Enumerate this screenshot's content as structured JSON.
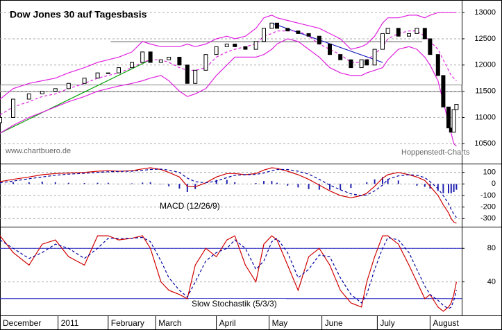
{
  "chart_data": [
    {
      "type": "candlestick",
      "title": "Dow Jones 30 auf Tagesbasis",
      "source": "www.chartbuero.de",
      "credit": "Hoppenstedt-Charts",
      "x": [
        0,
        5,
        11,
        16,
        21,
        26,
        32,
        37,
        41,
        45,
        50,
        54,
        57,
        61,
        64,
        68,
        71,
        74,
        78,
        82,
        86,
        89,
        93,
        97,
        100,
        103,
        105,
        109,
        113,
        117,
        121,
        125,
        129,
        133,
        137,
        139,
        142,
        145,
        147,
        151,
        155,
        158,
        161,
        163,
        166,
        168,
        170,
        171,
        172,
        173
      ],
      "xlim": [
        0,
        175
      ],
      "open": [
        10900,
        11000,
        11350,
        11450,
        11500,
        11550,
        11650,
        11750,
        11850,
        11850,
        11950,
        12050,
        12250,
        12050,
        12100,
        12150,
        12000,
        11650,
        11900,
        12200,
        12350,
        12400,
        12350,
        12300,
        12450,
        12700,
        12800,
        12700,
        12650,
        12600,
        12550,
        12400,
        12200,
        12100,
        11950,
        12100,
        12000,
        12300,
        12600,
        12700,
        12550,
        12600,
        12700,
        12500,
        12200,
        11800,
        11200,
        10800,
        10720,
        11150
      ],
      "close": [
        11000,
        11350,
        11450,
        11500,
        11550,
        11650,
        11750,
        11850,
        11850,
        11950,
        12050,
        12250,
        12050,
        12100,
        12150,
        12000,
        11650,
        11900,
        12200,
        12350,
        12400,
        12350,
        12300,
        12450,
        12700,
        12800,
        12700,
        12650,
        12600,
        12550,
        12400,
        12200,
        12100,
        11950,
        12100,
        12000,
        12300,
        12600,
        12700,
        12550,
        12600,
        12700,
        12500,
        12200,
        11800,
        11200,
        10800,
        10720,
        11150,
        11250
      ],
      "up_color": "#ffffff",
      "down_color": "#000000",
      "series": [
        {
          "color": "#e020e0",
          "style": "solid",
          "values": [
            11350,
            11550,
            11650,
            11700,
            11750,
            11850,
            11950,
            12050,
            12100,
            12150,
            12250,
            12450,
            12400,
            12350,
            12350,
            12350,
            12400,
            12350,
            12400,
            12500,
            12550,
            12500,
            12550,
            12700,
            12900,
            12950,
            12900,
            12850,
            12800,
            12750,
            12700,
            12600,
            12500,
            12300,
            12350,
            12400,
            12550,
            12800,
            12900,
            12900,
            12950,
            12950,
            12900,
            12950,
            13000,
            13000,
            13000,
            13000,
            13000,
            13000
          ]
        },
        {
          "color": "#e020e0",
          "style": "dashed",
          "values": [
            11050,
            11200,
            11300,
            11400,
            11450,
            11550,
            11650,
            11750,
            11800,
            11850,
            11950,
            12050,
            12100,
            12100,
            12050,
            11950,
            11900,
            11900,
            11950,
            12150,
            12250,
            12300,
            12350,
            12400,
            12550,
            12600,
            12650,
            12650,
            12650,
            12550,
            12400,
            12300,
            12200,
            12050,
            12050,
            12100,
            12200,
            12350,
            12500,
            12600,
            12650,
            12650,
            12550,
            12450,
            12300,
            12100,
            11900,
            11800,
            11750,
            11700
          ]
        },
        {
          "color": "#e020e0",
          "style": "solid",
          "values": [
            10700,
            10850,
            11000,
            11100,
            11200,
            11300,
            11400,
            11500,
            11550,
            11600,
            11650,
            11700,
            11750,
            11800,
            11700,
            11500,
            11400,
            11450,
            11550,
            11800,
            12000,
            12150,
            12150,
            12150,
            12200,
            12300,
            12400,
            12500,
            12450,
            12300,
            12150,
            11950,
            11850,
            11800,
            11800,
            11850,
            11900,
            11950,
            12100,
            12300,
            12350,
            12300,
            12150,
            12000,
            11700,
            11300,
            10900,
            10700,
            10500,
            10450
          ]
        }
      ],
      "trend_lines": [
        {
          "color": "#00a000",
          "x": [
            0,
            57
          ],
          "y": [
            10700,
            12100
          ]
        },
        {
          "color": "#2020c0",
          "x": [
            103,
            145
          ],
          "y": [
            12800,
            12050
          ]
        }
      ],
      "level": {
        "color": "#909090",
        "x": [
          42,
          160
        ],
        "y": 12444
      },
      "zone": {
        "color": "#808080",
        "x": [
          0,
          175
        ],
        "y": [
          11490,
          11620
        ]
      },
      "ylim": [
        10120,
        13240
      ],
      "yticks": [
        10500,
        11000,
        11500,
        12000,
        12500,
        13000
      ],
      "grid": true
    },
    {
      "type": "macd",
      "label": "MACD (12/26/9)",
      "series": [
        {
          "color": "#d00000",
          "style": "solid",
          "values": [
            20,
            40,
            60,
            80,
            90,
            95,
            100,
            110,
            115,
            110,
            115,
            130,
            140,
            125,
            100,
            60,
            -20,
            -25,
            10,
            60,
            90,
            90,
            80,
            90,
            120,
            140,
            135,
            110,
            80,
            40,
            -10,
            -60,
            -100,
            -120,
            -100,
            -80,
            -20,
            50,
            80,
            100,
            80,
            60,
            30,
            -20,
            -100,
            -180,
            -250,
            -300,
            -330,
            -340
          ]
        },
        {
          "color": "#0000a0",
          "style": "dashed",
          "values": [
            10,
            25,
            45,
            60,
            75,
            85,
            92,
            100,
            105,
            108,
            110,
            118,
            125,
            128,
            120,
            100,
            50,
            20,
            10,
            25,
            55,
            75,
            80,
            82,
            95,
            115,
            125,
            125,
            110,
            85,
            40,
            -10,
            -50,
            -85,
            -100,
            -95,
            -60,
            -10,
            40,
            70,
            80,
            75,
            55,
            20,
            -40,
            -100,
            -170,
            -220,
            -260,
            -290
          ]
        }
      ],
      "histogram": {
        "color": "#2020b0",
        "values": [
          10,
          15,
          15,
          20,
          15,
          10,
          8,
          10,
          10,
          2,
          5,
          12,
          15,
          -3,
          -20,
          -40,
          -70,
          -45,
          0,
          35,
          35,
          15,
          0,
          8,
          25,
          25,
          10,
          -15,
          -30,
          -45,
          -50,
          -50,
          -50,
          -35,
          0,
          15,
          40,
          60,
          40,
          30,
          0,
          -15,
          -25,
          -40,
          -60,
          -80,
          -80,
          -80,
          -70,
          -50
        ]
      },
      "ylim": [
        -370,
        170
      ],
      "yticks": [
        -300,
        -200,
        -100,
        0,
        100
      ],
      "grid": true
    },
    {
      "type": "stochastic",
      "label": "Slow Stochastik (5/3/3)",
      "series": [
        {
          "color": "#d00000",
          "style": "solid",
          "values": [
            95,
            75,
            60,
            85,
            90,
            70,
            60,
            95,
            95,
            90,
            92,
            95,
            80,
            40,
            30,
            25,
            20,
            60,
            80,
            70,
            90,
            95,
            60,
            40,
            85,
            95,
            90,
            60,
            30,
            70,
            80,
            60,
            30,
            15,
            10,
            40,
            70,
            95,
            95,
            85,
            60,
            40,
            20,
            25,
            10,
            5,
            10,
            15,
            25,
            40
          ]
        },
        {
          "color": "#0000a0",
          "style": "dashed",
          "values": [
            90,
            80,
            68,
            75,
            85,
            80,
            68,
            80,
            92,
            92,
            92,
            93,
            88,
            65,
            45,
            30,
            22,
            40,
            65,
            75,
            80,
            90,
            80,
            55,
            65,
            88,
            92,
            75,
            45,
            55,
            72,
            70,
            45,
            25,
            15,
            25,
            55,
            80,
            93,
            90,
            75,
            55,
            35,
            25,
            18,
            12,
            8,
            10,
            18,
            30
          ]
        }
      ],
      "levels": {
        "color": "#2020c0",
        "values": [
          80,
          20
        ]
      },
      "ylim": [
        0,
        105
      ],
      "yticks": [
        40,
        80
      ],
      "grid": true,
      "xticks": [
        {
          "value": 0,
          "label": "December"
        },
        {
          "value": 22,
          "label": "2011"
        },
        {
          "value": 41,
          "label": "February"
        },
        {
          "value": 59,
          "label": "March"
        },
        {
          "value": 82,
          "label": "April"
        },
        {
          "value": 102,
          "label": "May"
        },
        {
          "value": 122,
          "label": "June"
        },
        {
          "value": 143,
          "label": "July"
        },
        {
          "value": 163,
          "label": "August"
        }
      ]
    }
  ]
}
